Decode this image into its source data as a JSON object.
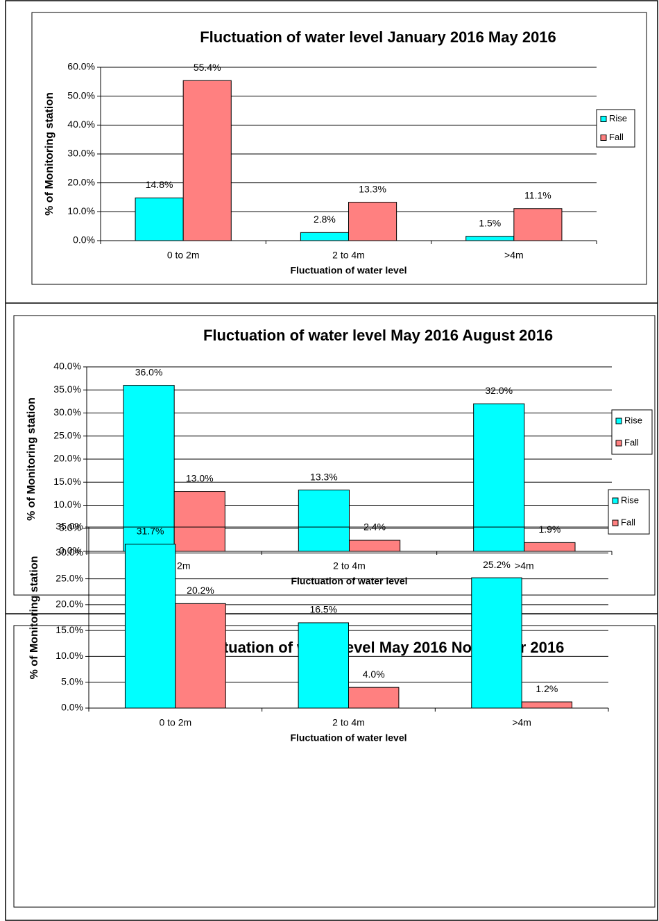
{
  "chart_data": [
    {
      "type": "bar",
      "title": "Fluctuation of water level January 2016 May 2016",
      "x_label": "Fluctuation of water level",
      "y_label": "% of Monitoring station",
      "categories": [
        "0 to 2m",
        "2 to 4m",
        ">4m"
      ],
      "series": [
        {
          "name": "Rise",
          "color": "#00ffff",
          "values": [
            14.8,
            2.8,
            1.5
          ],
          "value_labels": [
            "14.8%",
            "2.8%",
            "1.5%"
          ]
        },
        {
          "name": "Fall",
          "color": "#ff8080",
          "values": [
            55.4,
            13.3,
            11.1
          ],
          "value_labels": [
            "55.4%",
            "13.3%",
            "11.1%"
          ]
        }
      ],
      "ylim": [
        0,
        60
      ],
      "yticks": [
        {
          "value": 0,
          "label": "0.0%"
        },
        {
          "value": 10,
          "label": "10.0%"
        },
        {
          "value": 20,
          "label": "20.0%"
        },
        {
          "value": 30,
          "label": "30.0%"
        },
        {
          "value": 40,
          "label": "40.0%"
        },
        {
          "value": 50,
          "label": "50.0%"
        },
        {
          "value": 60,
          "label": "60.0%"
        }
      ],
      "grid": true,
      "legend": "right"
    },
    {
      "type": "bar",
      "title": "Fluctuation of water level May 2016 August 2016",
      "x_label": "Fluctuation of water level",
      "y_label": "% of Monitoring station",
      "categories": [
        "0 to 2m",
        "2 to 4m",
        ">4m"
      ],
      "series": [
        {
          "name": "Rise",
          "color": "#00ffff",
          "values": [
            36.0,
            13.3,
            32.0
          ],
          "value_labels": [
            "36.0%",
            "13.3%",
            "32.0%"
          ]
        },
        {
          "name": "Fall",
          "color": "#ff8080",
          "values": [
            13.0,
            2.4,
            1.9
          ],
          "value_labels": [
            "13.0%",
            "2.4%",
            "1.9%"
          ]
        }
      ],
      "ylim": [
        0,
        40
      ],
      "yticks": [
        {
          "value": 0,
          "label": "0.0%"
        },
        {
          "value": 5,
          "label": "5.0%"
        },
        {
          "value": 10,
          "label": "10.0%"
        },
        {
          "value": 15,
          "label": "15.0%"
        },
        {
          "value": 20,
          "label": "20.0%"
        },
        {
          "value": 25,
          "label": "25.0%"
        },
        {
          "value": 30,
          "label": "30.0%"
        },
        {
          "value": 35,
          "label": "35.0%"
        },
        {
          "value": 40,
          "label": "40.0%"
        }
      ],
      "grid": true,
      "legend": "right"
    },
    {
      "type": "bar",
      "title": "Fluctuation of water level May 2016 November 2016",
      "x_label": "Fluctuation of water level",
      "y_label": "% of Monitoring station",
      "categories": [
        "0 to 2m",
        "2 to 4m",
        ">4m"
      ],
      "series": [
        {
          "name": "Rise",
          "color": "#00ffff",
          "values": [
            31.7,
            16.5,
            25.2
          ],
          "value_labels": [
            "31.7%",
            "16.5%",
            "25.2%"
          ]
        },
        {
          "name": "Fall",
          "color": "#ff8080",
          "values": [
            20.2,
            4.0,
            1.2
          ],
          "value_labels": [
            "20.2%",
            "4.0%",
            "1.2%"
          ]
        }
      ],
      "ylim": [
        0,
        35
      ],
      "yticks": [
        {
          "value": 0,
          "label": "0.0%"
        },
        {
          "value": 5,
          "label": "5.0%"
        },
        {
          "value": 10,
          "label": "10.0%"
        },
        {
          "value": 15,
          "label": "15.0%"
        },
        {
          "value": 20,
          "label": "20.0%"
        },
        {
          "value": 25,
          "label": "25.0%"
        },
        {
          "value": 30,
          "label": "30.0%"
        },
        {
          "value": 35,
          "label": "35.0%"
        }
      ],
      "grid": true,
      "legend": "right"
    }
  ]
}
